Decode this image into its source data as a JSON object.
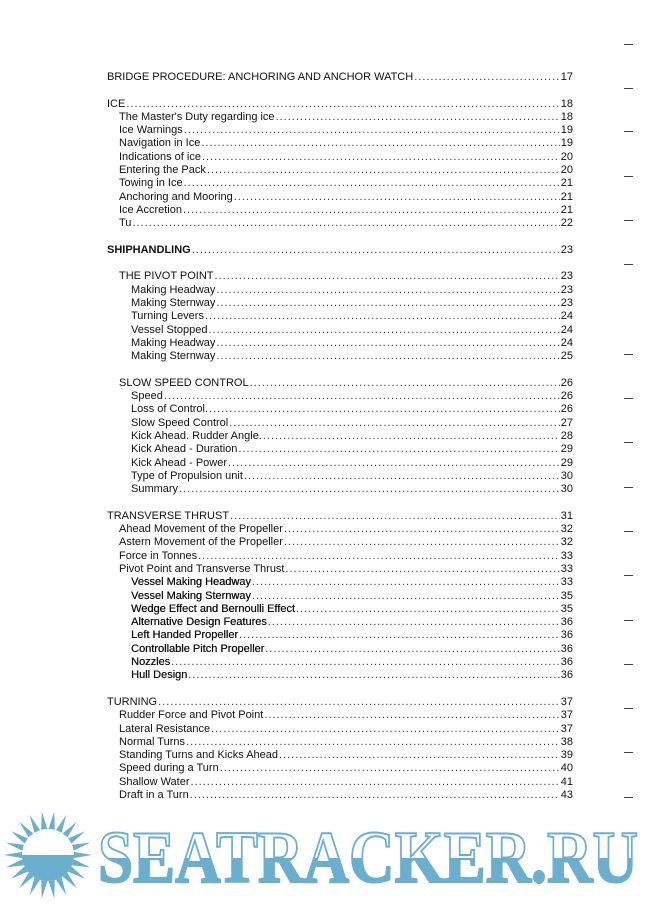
{
  "toc": [
    {
      "entries": [
        {
          "title": "BRIDGE PROCEDURE: ANCHORING AND ANCHOR WATCH",
          "page": "17",
          "level": 0
        }
      ]
    },
    {
      "entries": [
        {
          "title": "ICE",
          "page": "18",
          "level": 0
        },
        {
          "title": "The Master's Duty regarding ice",
          "page": "18",
          "level": 1
        },
        {
          "title": "Ice Warnings",
          "page": "19",
          "level": 1
        },
        {
          "title": "Navigation in Ice",
          "page": "19",
          "level": 1
        },
        {
          "title": "Indications of ice",
          "page": "20",
          "level": 1
        },
        {
          "title": "Entering the Pack",
          "page": "20",
          "level": 1
        },
        {
          "title": "Towing in Ice",
          "page": "21",
          "level": 1
        },
        {
          "title": "Anchoring and Mooring",
          "page": "21",
          "level": 1
        },
        {
          "title": "Ice Accretion",
          "page": "21",
          "level": 1
        },
        {
          "title": "Tu",
          "page": "22",
          "level": 1
        }
      ]
    },
    {
      "entries": [
        {
          "title": "SHIPHANDLING",
          "page": "23",
          "level": 0,
          "bold": true
        }
      ]
    },
    {
      "entries": [
        {
          "title": "THE PIVOT POINT",
          "page": "23",
          "level": 1
        },
        {
          "title": "Making Headway",
          "page": "23",
          "level": 2
        },
        {
          "title": "Making Sternway",
          "page": "23",
          "level": 2
        },
        {
          "title": "Turning Levers",
          "page": "24",
          "level": 2
        },
        {
          "title": "Vessel Stopped",
          "page": "24",
          "level": 2
        },
        {
          "title": "Making Headway",
          "page": "24",
          "level": 2
        },
        {
          "title": "Making Sternway",
          "page": "25",
          "level": 2
        }
      ]
    },
    {
      "entries": [
        {
          "title": "SLOW SPEED CONTROL",
          "page": "26",
          "level": 1
        },
        {
          "title": "Speed",
          "page": "26",
          "level": 2
        },
        {
          "title": "Loss of Control.",
          "page": "26",
          "level": 2
        },
        {
          "title": "Slow Speed Control",
          "page": "27",
          "level": 2
        },
        {
          "title": "Kick Ahead.  Rudder Angle.",
          "page": "28",
          "level": 2
        },
        {
          "title": "Kick Ahead - Duration",
          "page": "29",
          "level": 2
        },
        {
          "title": "Kick Ahead - Power",
          "page": "29",
          "level": 2
        },
        {
          "title": "Type of Propulsion unit",
          "page": "30",
          "level": 2
        },
        {
          "title": "Summary",
          "page": "30",
          "level": 2
        }
      ]
    },
    {
      "entries": [
        {
          "title": "TRANSVERSE THRUST",
          "page": "31",
          "level": 0
        },
        {
          "title": "Ahead Movement of the Propeller",
          "page": "32",
          "level": 1
        },
        {
          "title": "Astern Movement of the Propeller",
          "page": "32",
          "level": 1
        },
        {
          "title": "Force in Tonnes",
          "page": "33",
          "level": 1
        },
        {
          "title": "Pivot Point and Transverse Thrust",
          "page": "33",
          "level": 1
        },
        {
          "title": "Vessel Making Headway",
          "page": "33",
          "level": 2,
          "semi": true
        },
        {
          "title": "Vessel Making Sternway",
          "page": "35",
          "level": 2,
          "semi": true
        },
        {
          "title": "Wedge Effect and Bernoulli Effect",
          "page": "35",
          "level": 2,
          "semi": true
        },
        {
          "title": "Alternative Design Features",
          "page": "36",
          "level": 2,
          "semi": true
        },
        {
          "title": "Left Handed Propeller",
          "page": "36",
          "level": 2,
          "semi": true
        },
        {
          "title": "Controllable Pitch Propeller",
          "page": "36",
          "level": 2,
          "semi": true
        },
        {
          "title": "Nozzles",
          "page": "36",
          "level": 2,
          "semi": true
        },
        {
          "title": "Hull Design",
          "page": "36",
          "level": 2,
          "semi": true
        }
      ]
    },
    {
      "entries": [
        {
          "title": "TURNING",
          "page": "37",
          "level": 0
        },
        {
          "title": "Rudder Force and Pivot Point",
          "page": "37",
          "level": 1
        },
        {
          "title": "Lateral Resistance",
          "page": "37",
          "level": 1
        },
        {
          "title": "Normal Turns",
          "page": "38",
          "level": 1
        },
        {
          "title": "Standing Turns and Kicks Ahead",
          "page": "39",
          "level": 1
        },
        {
          "title": "Speed during a Turn",
          "page": "40",
          "level": 1
        },
        {
          "title": "Shallow Water",
          "page": "41",
          "level": 1
        },
        {
          "title": "Draft in a Turn",
          "page": "43",
          "level": 1
        }
      ]
    }
  ],
  "watermark": {
    "text": "SEATRACKER.RU",
    "color": "#6aaed0"
  }
}
